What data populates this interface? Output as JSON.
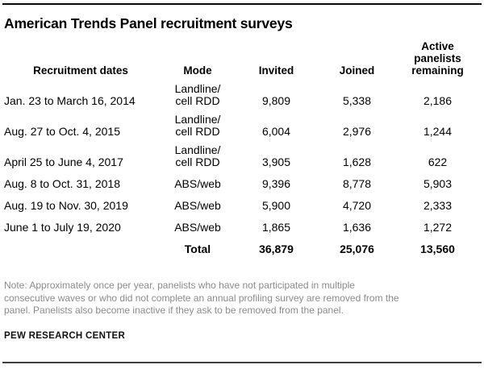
{
  "title": "American Trends Panel recruitment surveys",
  "colors": {
    "text": "#000000",
    "note_gray": "#8b8b8b",
    "rule_top": "#0a0a0a",
    "rule_bottom": "#404040"
  },
  "chart_data": {
    "type": "table",
    "title": "American Trends Panel recruitment surveys",
    "columns": [
      "Recruitment dates",
      "Mode",
      "Invited",
      "Joined",
      "Active panelists remaining"
    ],
    "column_headers_display": {
      "dates": "Recruitment dates",
      "mode": "Mode",
      "invited": "Invited",
      "joined": "Joined",
      "remaining": "Active\npanelists\nremaining"
    },
    "rows": [
      {
        "dates": "Jan. 23 to March 16, 2014",
        "mode": "Landline/\ncell RDD",
        "invited": "9,809",
        "joined": "5,338",
        "remaining": "2,186"
      },
      {
        "dates": "Aug. 27 to Oct. 4, 2015",
        "mode": "Landline/\ncell RDD",
        "invited": "6,004",
        "joined": "2,976",
        "remaining": "1,244"
      },
      {
        "dates": "April 25 to June 4, 2017",
        "mode": "Landline/\ncell RDD",
        "invited": "3,905",
        "joined": "1,628",
        "remaining": "622"
      },
      {
        "dates": "Aug. 8 to Oct. 31, 2018",
        "mode": "ABS/web",
        "invited": "9,396",
        "joined": "8,778",
        "remaining": "5,903"
      },
      {
        "dates": "Aug. 19 to Nov. 30, 2019",
        "mode": "ABS/web",
        "invited": "5,900",
        "joined": "4,720",
        "remaining": "2,333"
      },
      {
        "dates": "June 1 to July 19, 2020",
        "mode": "ABS/web",
        "invited": "1,865",
        "joined": "1,636",
        "remaining": "1,272"
      }
    ],
    "total": {
      "label": "Total",
      "invited": "36,879",
      "joined": "25,076",
      "remaining": "13,560"
    }
  },
  "note_lines": [
    "Note: Approximately once per year, panelists who have not participated in multiple",
    "consecutive waves or who did not complete an annual profiling survey are removed from the",
    "panel. Panelists also become inactive if they ask to be removed from the panel."
  ],
  "source": "PEW RESEARCH CENTER"
}
